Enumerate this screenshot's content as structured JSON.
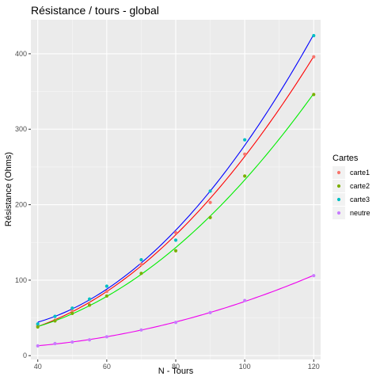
{
  "chart_data": {
    "type": "scatter",
    "title": "Résistance / tours - global",
    "xlabel": "N - Tours",
    "ylabel": "Résistance (Ohms)",
    "xlim": [
      38,
      122
    ],
    "ylim": [
      -5,
      445
    ],
    "xticks": [
      40,
      60,
      80,
      100,
      120
    ],
    "yticks": [
      0,
      100,
      200,
      300,
      400
    ],
    "x_minor": [
      50,
      70,
      90,
      110
    ],
    "y_minor": [
      50,
      150,
      250,
      350
    ],
    "grid": true,
    "legend": {
      "title": "Cartes",
      "placement": "right"
    },
    "smooth": true,
    "series": [
      {
        "name": "carte1",
        "color": "#F8766D",
        "line_color": "#FF0000",
        "points": [
          [
            40,
            40
          ],
          [
            45,
            47
          ],
          [
            50,
            59
          ],
          [
            55,
            67
          ],
          [
            60,
            85
          ],
          [
            70,
            121
          ],
          [
            80,
            163
          ],
          [
            90,
            203
          ],
          [
            100,
            267
          ],
          [
            120,
            396
          ]
        ]
      },
      {
        "name": "carte2",
        "color": "#7CAE00",
        "line_color": "#00EE00",
        "points": [
          [
            40,
            38
          ],
          [
            45,
            46
          ],
          [
            50,
            56
          ],
          [
            55,
            67
          ],
          [
            60,
            79
          ],
          [
            70,
            109
          ],
          [
            80,
            139
          ],
          [
            90,
            183
          ],
          [
            100,
            238
          ],
          [
            120,
            346
          ]
        ]
      },
      {
        "name": "carte3",
        "color": "#00BFC4",
        "line_color": "#0000FF",
        "points": [
          [
            40,
            42
          ],
          [
            45,
            52
          ],
          [
            50,
            63
          ],
          [
            55,
            75
          ],
          [
            60,
            92
          ],
          [
            70,
            127
          ],
          [
            80,
            153
          ],
          [
            90,
            218
          ],
          [
            100,
            286
          ],
          [
            120,
            424
          ]
        ]
      },
      {
        "name": "neutre",
        "color": "#C77CFF",
        "line_color": "#EE00EE",
        "points": [
          [
            40,
            13
          ],
          [
            45,
            16
          ],
          [
            50,
            18
          ],
          [
            55,
            21
          ],
          [
            60,
            25
          ],
          [
            70,
            34
          ],
          [
            80,
            44
          ],
          [
            90,
            57
          ],
          [
            100,
            73
          ],
          [
            120,
            106
          ]
        ]
      }
    ]
  }
}
